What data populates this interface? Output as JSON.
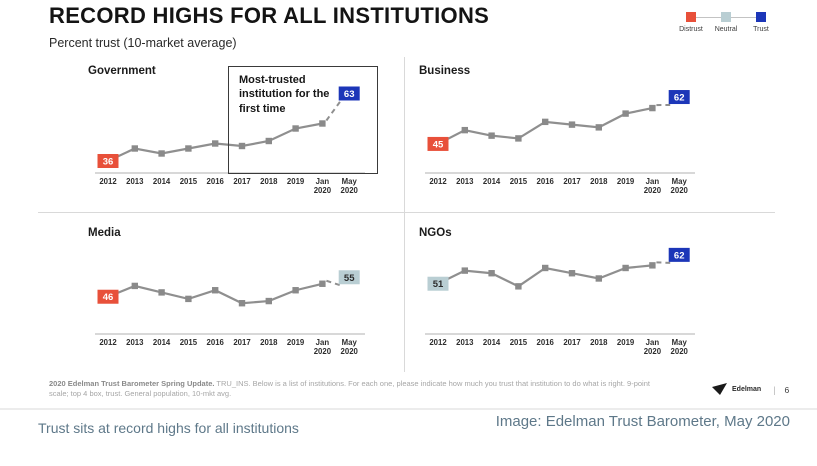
{
  "slide": {
    "title": "RECORD HIGHS FOR ALL INSTITUTIONS",
    "subtitle": "Percent trust (10-market average)",
    "legend": [
      {
        "label": "Distrust",
        "color": "#e8503a"
      },
      {
        "label": "Neutral",
        "color": "#b9ced3"
      },
      {
        "label": "Trust",
        "color": "#1c36b8"
      }
    ],
    "footnote_bold": "2020 Edelman Trust Barometer Spring Update.",
    "footnote_rest": " TRU_INS. Below is a list of institutions. For each one, please indicate how much you trust that institution to do what is right. 9-point scale; top 4 box, trust. General population, 10-mkt avg.",
    "logo_text": "Edelman",
    "page_number": "6"
  },
  "colors": {
    "distrust": "#e8503a",
    "neutral": "#b9ced3",
    "trust": "#1c36b8",
    "line": "#8f8f8f",
    "marker": "#8a8a8a",
    "divider": "#d9d9d9",
    "caption": "#5e7889"
  },
  "chart_data": [
    {
      "type": "line",
      "title": "Government",
      "x": [
        "2012",
        "2013",
        "2014",
        "2015",
        "2016",
        "2017",
        "2018",
        "2019",
        "Jan 2020",
        "May 2020"
      ],
      "values": [
        36,
        41,
        39,
        41,
        43,
        42,
        44,
        49,
        51,
        63
      ],
      "labeled_points": {
        "2012": 36,
        "May 2020": 63
      },
      "ylim": [
        34,
        66
      ],
      "dashed_final_segment": true,
      "annotation": "Most-trusted institution for the first time",
      "grid": false
    },
    {
      "type": "line",
      "title": "Business",
      "x": [
        "2012",
        "2013",
        "2014",
        "2015",
        "2016",
        "2017",
        "2018",
        "2019",
        "Jan 2020",
        "May 2020"
      ],
      "values": [
        45,
        50,
        48,
        47,
        53,
        52,
        51,
        56,
        58,
        62
      ],
      "labeled_points": {
        "2012": 45,
        "May 2020": 62
      },
      "ylim": [
        37,
        66
      ],
      "dashed_final_segment": true,
      "grid": false
    },
    {
      "type": "line",
      "title": "Media",
      "x": [
        "2012",
        "2013",
        "2014",
        "2015",
        "2016",
        "2017",
        "2018",
        "2019",
        "Jan 2020",
        "May 2020"
      ],
      "values": [
        46,
        51,
        48,
        45,
        49,
        43,
        44,
        49,
        52,
        55
      ],
      "labeled_points": {
        "2012": 46,
        "May 2020": 55
      },
      "ylim": [
        32,
        69
      ],
      "dashed_final_segment": true,
      "grid": false
    },
    {
      "type": "line",
      "title": "NGOs",
      "x": [
        "2012",
        "2013",
        "2014",
        "2015",
        "2016",
        "2017",
        "2018",
        "2019",
        "Jan 2020",
        "May 2020"
      ],
      "values": [
        51,
        56,
        55,
        50,
        57,
        55,
        53,
        57,
        58,
        62
      ],
      "labeled_points": {
        "2012": 51,
        "May 2020": 62
      },
      "ylim": [
        34.5,
        65
      ],
      "dashed_final_segment": true,
      "grid": false
    }
  ],
  "caption": {
    "left": "Trust sits at record highs for all institutions",
    "credit": "Image: Edelman Trust Barometer, May 2020"
  }
}
